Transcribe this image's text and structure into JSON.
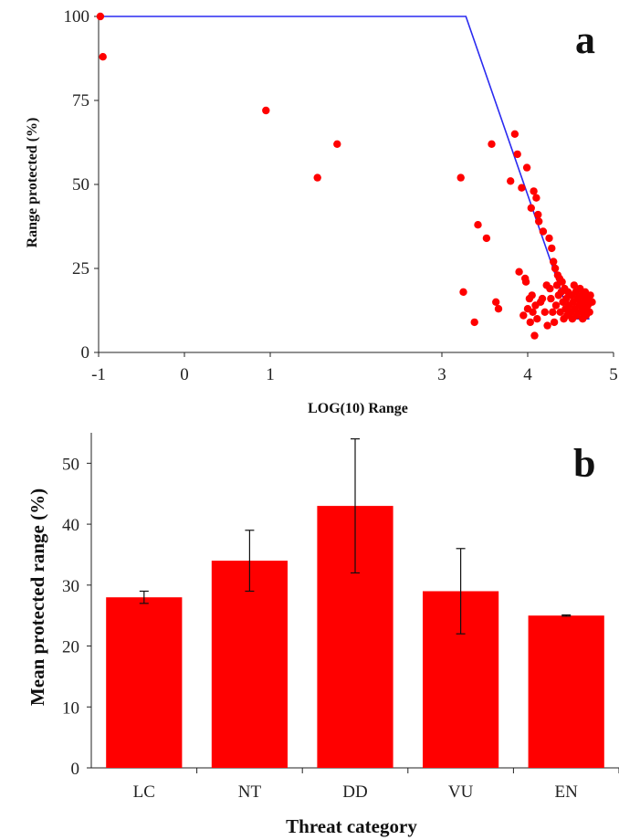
{
  "chart_data": [
    {
      "panel": "a",
      "type": "scatter",
      "xlabel": "LOG(10) Range",
      "ylabel": "Range protected (%)",
      "xlim": [
        -1,
        5
      ],
      "ylim": [
        0,
        100
      ],
      "x_ticks": [
        "-1",
        "0",
        "1",
        "3",
        "4",
        "5"
      ],
      "y_ticks": [
        "0",
        "25",
        "50",
        "75",
        "100"
      ],
      "series": [
        {
          "type": "scatter",
          "color": "#ff0000",
          "points": [
            [
              -0.98,
              100
            ],
            [
              -0.95,
              88
            ],
            [
              0.95,
              72
            ],
            [
              1.55,
              52
            ],
            [
              1.78,
              62
            ],
            [
              3.22,
              52
            ],
            [
              3.25,
              18
            ],
            [
              3.38,
              9
            ],
            [
              3.42,
              38
            ],
            [
              3.52,
              34
            ],
            [
              3.58,
              62
            ],
            [
              3.63,
              15
            ],
            [
              3.66,
              13
            ],
            [
              3.8,
              51
            ],
            [
              3.85,
              65
            ],
            [
              3.88,
              59
            ],
            [
              3.9,
              24
            ],
            [
              3.93,
              49
            ],
            [
              3.95,
              11
            ],
            [
              3.97,
              22
            ],
            [
              3.98,
              21
            ],
            [
              3.99,
              55
            ],
            [
              4.0,
              13
            ],
            [
              4.02,
              16
            ],
            [
              4.03,
              9
            ],
            [
              4.04,
              43
            ],
            [
              4.05,
              17
            ],
            [
              4.06,
              12
            ],
            [
              4.07,
              48
            ],
            [
              4.08,
              5
            ],
            [
              4.09,
              14
            ],
            [
              4.1,
              46
            ],
            [
              4.11,
              10
            ],
            [
              4.12,
              41
            ],
            [
              4.13,
              39
            ],
            [
              4.15,
              15
            ],
            [
              4.17,
              16
            ],
            [
              4.18,
              36
            ],
            [
              4.2,
              12
            ],
            [
              4.22,
              20
            ],
            [
              4.23,
              8
            ],
            [
              4.25,
              34
            ],
            [
              4.26,
              19
            ],
            [
              4.27,
              16
            ],
            [
              4.28,
              31
            ],
            [
              4.29,
              12
            ],
            [
              4.3,
              27
            ],
            [
              4.31,
              9
            ],
            [
              4.32,
              25
            ],
            [
              4.33,
              14
            ],
            [
              4.34,
              20
            ],
            [
              4.35,
              23
            ],
            [
              4.36,
              17
            ],
            [
              4.37,
              22
            ],
            [
              4.38,
              12
            ],
            [
              4.39,
              18
            ],
            [
              4.4,
              21
            ],
            [
              4.41,
              15
            ],
            [
              4.42,
              10
            ],
            [
              4.43,
              19
            ],
            [
              4.44,
              13
            ],
            [
              4.45,
              16
            ],
            [
              4.46,
              11
            ],
            [
              4.47,
              18
            ],
            [
              4.48,
              14
            ],
            [
              4.5,
              12
            ],
            [
              4.51,
              17
            ],
            [
              4.52,
              10
            ],
            [
              4.53,
              15
            ],
            [
              4.54,
              20
            ],
            [
              4.55,
              13
            ],
            [
              4.56,
              18
            ],
            [
              4.57,
              11
            ],
            [
              4.58,
              16
            ],
            [
              4.6,
              14
            ],
            [
              4.61,
              19
            ],
            [
              4.62,
              12
            ],
            [
              4.63,
              17
            ],
            [
              4.64,
              10
            ],
            [
              4.65,
              15
            ],
            [
              4.66,
              13
            ],
            [
              4.67,
              18
            ],
            [
              4.68,
              11
            ],
            [
              4.69,
              16
            ],
            [
              4.7,
              14
            ],
            [
              4.72,
              12
            ],
            [
              4.73,
              17
            ],
            [
              4.75,
              15
            ]
          ]
        },
        {
          "type": "line",
          "color": "#2a2af0",
          "points": [
            [
              -1,
              100
            ],
            [
              3.28,
              100
            ],
            [
              4.5,
              10
            ],
            [
              4.72,
              10
            ]
          ]
        }
      ]
    },
    {
      "panel": "b",
      "type": "bar",
      "xlabel": "Threat category",
      "ylabel": "Mean protected range (%)",
      "categories": [
        "LC",
        "NT",
        "DD",
        "VU",
        "EN"
      ],
      "values": [
        28,
        34,
        43,
        29,
        25
      ],
      "error_low": [
        27,
        29,
        32,
        22,
        24.9
      ],
      "error_high": [
        29,
        39,
        54,
        36,
        25.1
      ],
      "ylim": [
        0,
        55
      ],
      "y_ticks": [
        "0",
        "10",
        "20",
        "30",
        "40",
        "50"
      ],
      "color": "#ff0000"
    }
  ],
  "panel_labels": {
    "a": "a",
    "b": "b"
  }
}
